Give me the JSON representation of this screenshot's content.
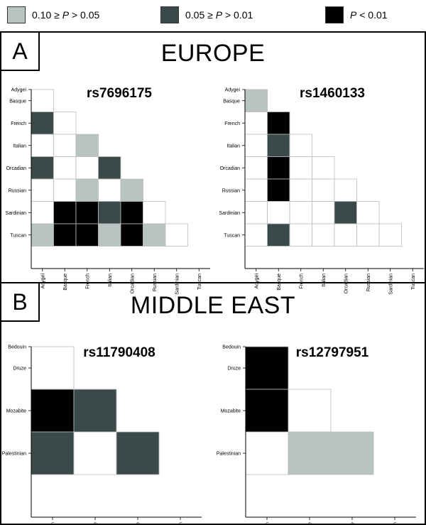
{
  "legend": [
    {
      "label_pre": "0.10 ≥ ",
      "label_p": "P",
      "label_post": " > 0.05",
      "color": "#b7c4c1",
      "level": "p10"
    },
    {
      "label_pre": "0.05 ≥ ",
      "label_p": "P",
      "label_post": " > 0.01",
      "color": "#3a4a4a",
      "level": "p05"
    },
    {
      "label_pre": "",
      "label_p": "P",
      "label_post": " < 0.01",
      "color": "#000000",
      "level": "p01"
    }
  ],
  "colors": {
    "p10": "#b7c4c1",
    "p05": "#3a4a4a",
    "p01": "#000000",
    "ns": "#ffffff"
  },
  "panels": [
    {
      "letter": "A",
      "region": "EUROPE"
    },
    {
      "letter": "B",
      "region": "MIDDLE EAST"
    }
  ],
  "chart_data": [
    {
      "type": "heatmap",
      "title": "rs7696175",
      "populations": [
        "Adygei",
        "Basque",
        "French",
        "Italian",
        "Orcadian",
        "Russian",
        "Sardinian",
        "Tuscan"
      ],
      "cells": [
        [
          "ns"
        ],
        [
          "p05",
          "ns"
        ],
        [
          "ns",
          "ns",
          "p10"
        ],
        [
          "p05",
          "ns",
          "ns",
          "p05"
        ],
        [
          "ns",
          "ns",
          "p10",
          "ns",
          "p10"
        ],
        [
          "ns",
          "p01",
          "p01",
          "p05",
          "p01",
          "ns"
        ],
        [
          "p10",
          "p01",
          "p01",
          "p10",
          "p01",
          "p10",
          "ns"
        ]
      ]
    },
    {
      "type": "heatmap",
      "title": "rs1460133",
      "populations": [
        "Adygei",
        "Basque",
        "French",
        "Italian",
        "Orcadian",
        "Russian",
        "Sardinian",
        "Tuscan"
      ],
      "cells": [
        [
          "p10"
        ],
        [
          "ns",
          "p01"
        ],
        [
          "ns",
          "p05",
          "ns"
        ],
        [
          "ns",
          "p01",
          "ns",
          "ns"
        ],
        [
          "ns",
          "p01",
          "ns",
          "ns",
          "ns"
        ],
        [
          "ns",
          "ns",
          "ns",
          "ns",
          "p05",
          "ns"
        ],
        [
          "ns",
          "p05",
          "ns",
          "ns",
          "ns",
          "ns",
          "ns"
        ]
      ]
    },
    {
      "type": "heatmap",
      "title": "rs11790408",
      "populations": [
        "Bedouin",
        "Druze",
        "Mozabite",
        "Palestinian"
      ],
      "cells": [
        [
          "ns"
        ],
        [
          "p01",
          "p05"
        ],
        [
          "p05",
          "ns",
          "p05"
        ]
      ]
    },
    {
      "type": "heatmap",
      "title": "rs12797951",
      "populations": [
        "Bedouin",
        "Druze",
        "Mozabite",
        "Palestinian"
      ],
      "cells": [
        [
          "p01"
        ],
        [
          "p01",
          "ns"
        ],
        [
          "ns",
          "p10",
          "p10"
        ]
      ]
    }
  ]
}
